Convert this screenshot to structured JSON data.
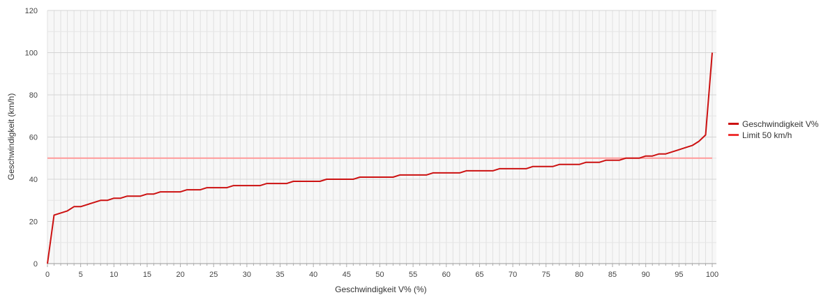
{
  "chart_data": {
    "type": "line",
    "xlabel": "Geschwindigkeit V% (%)",
    "ylabel": "Geschwindigkeit (km/h)",
    "xlim": [
      0,
      100
    ],
    "ylim": [
      0,
      120
    ],
    "x_ticks": [
      "0",
      "5",
      "10",
      "15",
      "20",
      "25",
      "30",
      "35",
      "40",
      "45",
      "50",
      "55",
      "60",
      "65",
      "70",
      "75",
      "80",
      "85",
      "90",
      "95",
      "100"
    ],
    "y_ticks": [
      "0",
      "20",
      "40",
      "60",
      "80",
      "100",
      "120"
    ],
    "grid": true,
    "legend_position": "right",
    "series": [
      {
        "name": "Geschwindigkeit V%",
        "color": "#cc1111",
        "x": [
          0,
          1,
          2,
          3,
          4,
          5,
          6,
          7,
          8,
          9,
          10,
          11,
          12,
          13,
          14,
          15,
          16,
          17,
          18,
          19,
          20,
          21,
          22,
          23,
          24,
          25,
          26,
          27,
          28,
          29,
          30,
          31,
          32,
          33,
          34,
          35,
          36,
          37,
          38,
          39,
          40,
          41,
          42,
          43,
          44,
          45,
          46,
          47,
          48,
          49,
          50,
          51,
          52,
          53,
          54,
          55,
          56,
          57,
          58,
          59,
          60,
          61,
          62,
          63,
          64,
          65,
          66,
          67,
          68,
          69,
          70,
          71,
          72,
          73,
          74,
          75,
          76,
          77,
          78,
          79,
          80,
          81,
          82,
          83,
          84,
          85,
          86,
          87,
          88,
          89,
          90,
          91,
          92,
          93,
          94,
          95,
          96,
          97,
          98,
          99,
          100
        ],
        "y": [
          0,
          23,
          24,
          25,
          27,
          27,
          28,
          29,
          30,
          30,
          31,
          31,
          32,
          32,
          32,
          33,
          33,
          34,
          34,
          34,
          34,
          35,
          35,
          35,
          36,
          36,
          36,
          36,
          37,
          37,
          37,
          37,
          37,
          38,
          38,
          38,
          38,
          39,
          39,
          39,
          39,
          39,
          40,
          40,
          40,
          40,
          40,
          41,
          41,
          41,
          41,
          41,
          41,
          42,
          42,
          42,
          42,
          42,
          43,
          43,
          43,
          43,
          43,
          44,
          44,
          44,
          44,
          44,
          45,
          45,
          45,
          45,
          45,
          46,
          46,
          46,
          46,
          47,
          47,
          47,
          47,
          48,
          48,
          48,
          49,
          49,
          49,
          50,
          50,
          50,
          51,
          51,
          52,
          52,
          53,
          54,
          55,
          56,
          58,
          61,
          100
        ]
      },
      {
        "name": "Limit 50 km/h",
        "color": "#ff9999",
        "x": [
          0,
          100
        ],
        "y": [
          50,
          50
        ]
      }
    ]
  }
}
